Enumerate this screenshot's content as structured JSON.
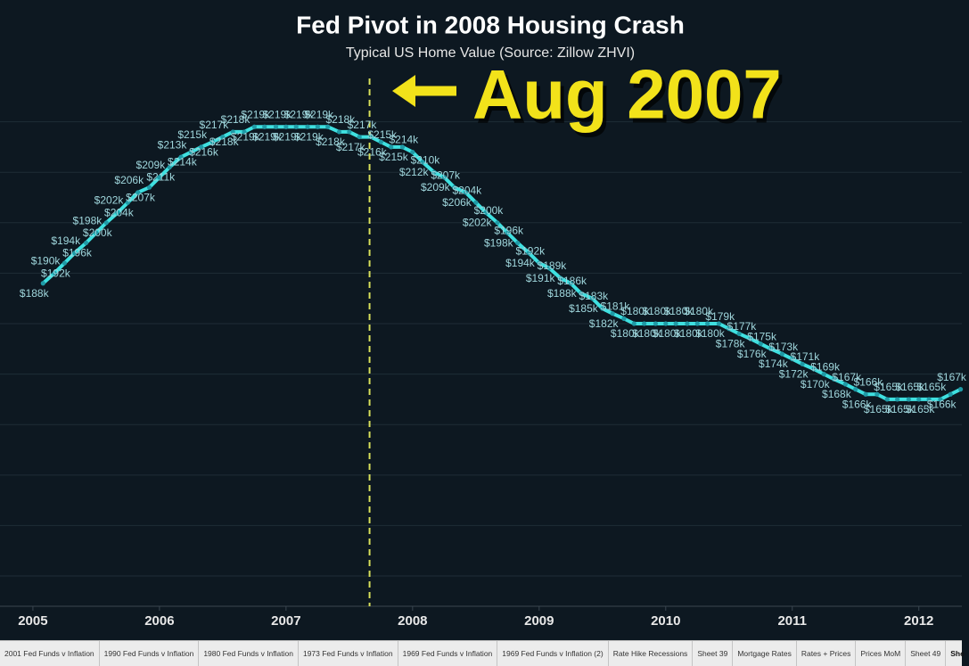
{
  "chart_data": {
    "type": "line",
    "title": "Fed Pivot in 2008 Housing Crash",
    "subtitle": "Typical US Home Value (Source: Zillow ZHVI)",
    "annotation": "Aug 2007",
    "reference_x": 2007.66,
    "color": "#3fe0e0",
    "x": [
      2005.08,
      2005.17,
      2005.25,
      2005.33,
      2005.42,
      2005.5,
      2005.58,
      2005.67,
      2005.75,
      2005.83,
      2005.92,
      2006.0,
      2006.08,
      2006.17,
      2006.25,
      2006.33,
      2006.42,
      2006.5,
      2006.58,
      2006.67,
      2006.75,
      2006.83,
      2006.92,
      2007.0,
      2007.08,
      2007.17,
      2007.25,
      2007.33,
      2007.42,
      2007.5,
      2007.58,
      2007.67,
      2007.75,
      2007.83,
      2007.92,
      2008.0,
      2008.08,
      2008.17,
      2008.25,
      2008.33,
      2008.42,
      2008.5,
      2008.58,
      2008.67,
      2008.75,
      2008.83,
      2008.92,
      2009.0,
      2009.08,
      2009.17,
      2009.25,
      2009.33,
      2009.42,
      2009.5,
      2009.58,
      2009.67,
      2009.75,
      2009.83,
      2009.92,
      2010.0,
      2010.08,
      2010.17,
      2010.25,
      2010.33,
      2010.42,
      2010.5,
      2010.58,
      2010.67,
      2010.75,
      2010.83,
      2010.92,
      2011.0,
      2011.08,
      2011.17,
      2011.25,
      2011.33,
      2011.42,
      2011.5,
      2011.58,
      2011.67,
      2011.75,
      2011.83,
      2011.92,
      2012.0,
      2012.08,
      2012.17,
      2012.25,
      2012.33
    ],
    "values": [
      188,
      190,
      192,
      194,
      196,
      198,
      200,
      202,
      204,
      206,
      207,
      209,
      211,
      213,
      214,
      215,
      216,
      217,
      218,
      218,
      219,
      219,
      219,
      219,
      219,
      219,
      219,
      219,
      218,
      218,
      217,
      217,
      216,
      215,
      215,
      214,
      212,
      210,
      209,
      207,
      206,
      204,
      202,
      200,
      198,
      196,
      194,
      192,
      191,
      189,
      188,
      186,
      185,
      183,
      182,
      181,
      180,
      180,
      180,
      180,
      180,
      180,
      180,
      180,
      180,
      179,
      178,
      177,
      176,
      175,
      174,
      173,
      172,
      171,
      170,
      169,
      168,
      167,
      166,
      166,
      165,
      165,
      165,
      165,
      165,
      165,
      166,
      167
    ],
    "value_labels": [
      "$188k",
      "$190k",
      "$192k",
      "$194k",
      "$196k",
      "$198k",
      "$200k",
      "$202k",
      "$204k",
      "$206k",
      "$207k",
      "$209k",
      "$211k",
      "$213k",
      "$214k",
      "$215k",
      "$216k",
      "$217k",
      "$218k",
      "$218k",
      "$219k",
      "$219k",
      "$219k",
      "$219k",
      "$219k",
      "$219k",
      "$219k",
      "$219k",
      "$218k",
      "$218k",
      "$217k",
      "$217k",
      "$216k",
      "$215k",
      "$215k",
      "$214k",
      "$212k",
      "$210k",
      "$209k",
      "$207k",
      "$206k",
      "$204k",
      "$202k",
      "$200k",
      "$198k",
      "$196k",
      "$194k",
      "$192k",
      "$191k",
      "$189k",
      "$188k",
      "$186k",
      "$185k",
      "$183k",
      "$182k",
      "$181k",
      "$180k",
      "$180k",
      "$180k",
      "$180k",
      "$180k",
      "$180k",
      "$180k",
      "$180k",
      "$180k",
      "$179k",
      "$178k",
      "$177k",
      "$176k",
      "$175k",
      "$174k",
      "$173k",
      "$172k",
      "$171k",
      "$170k",
      "$169k",
      "$168k",
      "$167k",
      "$166k",
      "$166k",
      "$165k",
      "$165k",
      "$165k",
      "$165k",
      "$165k",
      "$165k",
      "$166k",
      "$167k"
    ],
    "xlim": [
      2004.74,
      2012.34
    ],
    "xticks": [
      2005,
      2006,
      2007,
      2008,
      2009,
      2010,
      2011,
      2012
    ],
    "ylim": [
      124,
      230
    ],
    "yticks": [
      130,
      140,
      150,
      160,
      170,
      180,
      190,
      200,
      210,
      220
    ],
    "grid": true
  },
  "tabs": [
    "2001 Fed Funds v Inflation",
    "1990 Fed Funds v Inflation",
    "1980 Fed Funds v Inflation",
    "1973 Fed Funds v Inflation",
    "1969 Fed Funds v Inflation",
    "1969 Fed Funds v Inflation (2)",
    "Rate Hike Recessions",
    "Sheet 39",
    "Mortgage Rates",
    "Rates + Prices",
    "Prices MoM",
    "Sheet 49",
    "She"
  ]
}
